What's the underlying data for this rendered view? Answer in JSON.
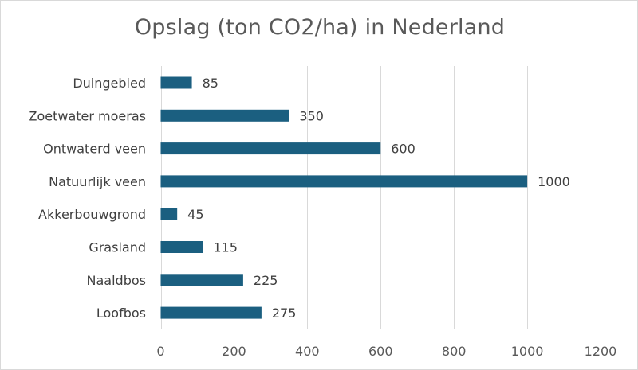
{
  "chart_data": {
    "type": "bar",
    "orientation": "horizontal",
    "title": "Opslag (ton CO2/ha) in Nederland",
    "categories": [
      "Duingebied",
      "Zoetwater moeras",
      "Ontwaterd veen",
      "Natuurlijk veen",
      "Akkerbouwgrond",
      "Grasland",
      "Naaldbos",
      "Loofbos"
    ],
    "values": [
      85,
      350,
      600,
      1000,
      45,
      115,
      225,
      275
    ],
    "xlim": [
      0,
      1200
    ],
    "xticks": [
      0,
      200,
      400,
      600,
      800,
      1000,
      1200
    ],
    "xtick_labels": [
      "0",
      "200",
      "400",
      "600",
      "800",
      "1000",
      "1200"
    ],
    "data_labels": [
      "85",
      "350",
      "600",
      "1000",
      "45",
      "115",
      "225",
      "275"
    ],
    "grid": true,
    "bar_color": "#1b5f80",
    "grid_color": "#d9d9d9"
  }
}
